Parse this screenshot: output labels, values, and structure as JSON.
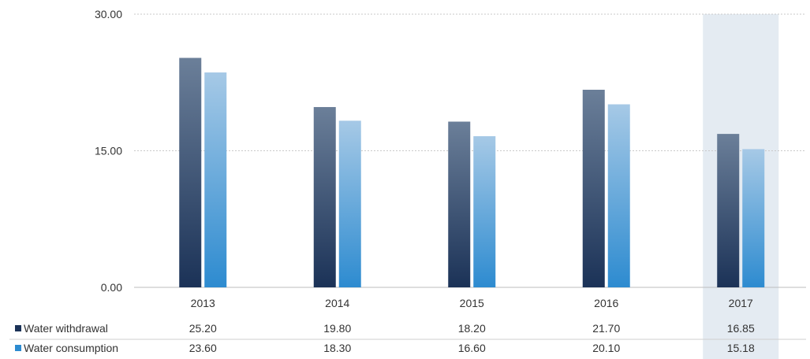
{
  "chart_data": {
    "type": "bar",
    "categories": [
      "2013",
      "2014",
      "2015",
      "2016",
      "2017"
    ],
    "series": [
      {
        "name": "Water withdrawal",
        "values": [
          25.2,
          19.8,
          18.2,
          21.7,
          16.85
        ],
        "value_labels": [
          "25.20",
          "19.80",
          "18.20",
          "21.70",
          "16.85"
        ],
        "color_top": "#6b7f99",
        "color_bottom": "#1b3257"
      },
      {
        "name": "Water consumption",
        "values": [
          23.6,
          18.3,
          16.6,
          20.1,
          15.18
        ],
        "value_labels": [
          "23.60",
          "18.30",
          "16.60",
          "20.10",
          "15.18"
        ],
        "color_top": "#a6c9e6",
        "color_bottom": "#2d8bd0"
      }
    ],
    "title": "",
    "xlabel": "",
    "ylabel": "",
    "ylim": [
      0,
      30
    ],
    "yticks": [
      "0.00",
      "15.00",
      "30.00"
    ],
    "grid": true,
    "legend": "data-table-bottom-left",
    "highlight_category": "2017",
    "highlight_color": "#e4ebf2"
  }
}
